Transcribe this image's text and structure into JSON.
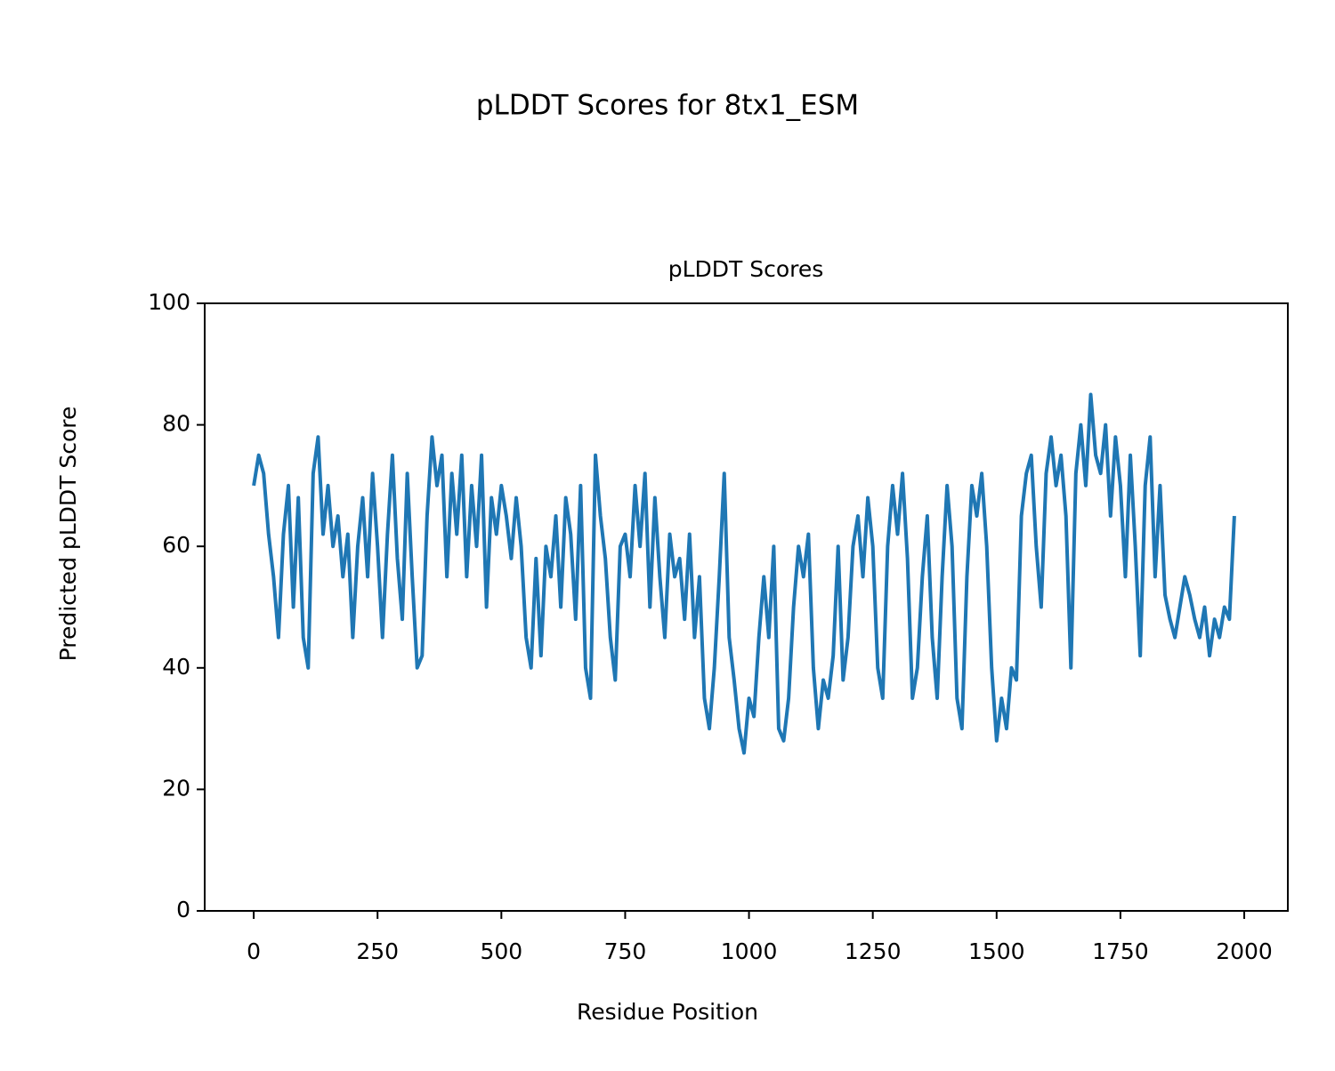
{
  "chart_data": {
    "type": "line",
    "title": "pLDDT Scores for 8tx1_ESM",
    "subtitle": "pLDDT Scores",
    "xlabel": "Residue Position",
    "ylabel": "Predicted pLDDT Score",
    "xlim": [
      -99,
      2088
    ],
    "ylim": [
      0,
      100
    ],
    "xticks": [
      0,
      250,
      500,
      750,
      1000,
      1250,
      1500,
      1750,
      2000
    ],
    "yticks": [
      0,
      20,
      40,
      60,
      80,
      100
    ],
    "grid": false,
    "x": [
      0,
      10,
      20,
      30,
      40,
      50,
      60,
      70,
      80,
      90,
      100,
      110,
      120,
      130,
      140,
      150,
      160,
      170,
      180,
      190,
      200,
      210,
      220,
      230,
      240,
      250,
      260,
      270,
      280,
      290,
      300,
      310,
      320,
      330,
      340,
      350,
      360,
      370,
      380,
      390,
      400,
      410,
      420,
      430,
      440,
      450,
      460,
      470,
      480,
      490,
      500,
      510,
      520,
      530,
      540,
      550,
      560,
      570,
      580,
      590,
      600,
      610,
      620,
      630,
      640,
      650,
      660,
      670,
      680,
      690,
      700,
      710,
      720,
      730,
      740,
      750,
      760,
      770,
      780,
      790,
      800,
      810,
      820,
      830,
      840,
      850,
      860,
      870,
      880,
      890,
      900,
      910,
      920,
      930,
      940,
      950,
      960,
      970,
      980,
      990,
      1000,
      1010,
      1020,
      1030,
      1040,
      1050,
      1060,
      1070,
      1080,
      1090,
      1100,
      1110,
      1120,
      1130,
      1140,
      1150,
      1160,
      1170,
      1180,
      1190,
      1200,
      1210,
      1220,
      1230,
      1240,
      1250,
      1260,
      1270,
      1280,
      1290,
      1300,
      1310,
      1320,
      1330,
      1340,
      1350,
      1360,
      1370,
      1380,
      1390,
      1400,
      1410,
      1420,
      1430,
      1440,
      1450,
      1460,
      1470,
      1480,
      1490,
      1500,
      1510,
      1520,
      1530,
      1540,
      1550,
      1560,
      1570,
      1580,
      1590,
      1600,
      1610,
      1620,
      1630,
      1640,
      1650,
      1660,
      1670,
      1680,
      1690,
      1700,
      1710,
      1720,
      1730,
      1740,
      1750,
      1760,
      1770,
      1780,
      1790,
      1800,
      1810,
      1820,
      1830,
      1840,
      1850,
      1860,
      1870,
      1880,
      1890,
      1900,
      1910,
      1920,
      1930,
      1940,
      1950,
      1960,
      1970,
      1980
    ],
    "series": [
      {
        "name": "pLDDT",
        "color": "#1f77b4",
        "values": [
          70,
          75,
          72,
          62,
          55,
          45,
          62,
          70,
          50,
          68,
          45,
          40,
          72,
          78,
          62,
          70,
          60,
          65,
          55,
          62,
          45,
          60,
          68,
          55,
          72,
          60,
          45,
          62,
          75,
          58,
          48,
          72,
          55,
          40,
          42,
          65,
          78,
          70,
          75,
          55,
          72,
          62,
          75,
          55,
          70,
          60,
          75,
          50,
          68,
          62,
          70,
          65,
          58,
          68,
          60,
          45,
          40,
          58,
          42,
          60,
          55,
          65,
          50,
          68,
          62,
          48,
          70,
          40,
          35,
          75,
          65,
          58,
          45,
          38,
          60,
          62,
          55,
          70,
          60,
          72,
          50,
          68,
          55,
          45,
          62,
          55,
          58,
          48,
          62,
          45,
          55,
          35,
          30,
          40,
          55,
          72,
          45,
          38,
          30,
          26,
          35,
          32,
          45,
          55,
          45,
          60,
          30,
          28,
          35,
          50,
          60,
          55,
          62,
          40,
          30,
          38,
          35,
          42,
          60,
          38,
          45,
          60,
          65,
          55,
          68,
          60,
          40,
          35,
          60,
          70,
          62,
          72,
          58,
          35,
          40,
          55,
          65,
          45,
          35,
          55,
          70,
          60,
          35,
          30,
          55,
          70,
          65,
          72,
          60,
          40,
          28,
          35,
          30,
          40,
          38,
          65,
          72,
          75,
          60,
          50,
          72,
          78,
          70,
          75,
          65,
          40,
          72,
          80,
          70,
          85,
          75,
          72,
          80,
          65,
          78,
          70,
          55,
          75,
          60,
          42,
          70,
          78,
          55,
          70,
          52,
          48,
          45,
          50,
          55,
          52,
          48,
          45,
          50,
          42,
          48,
          45,
          50,
          48,
          65
        ]
      }
    ]
  }
}
